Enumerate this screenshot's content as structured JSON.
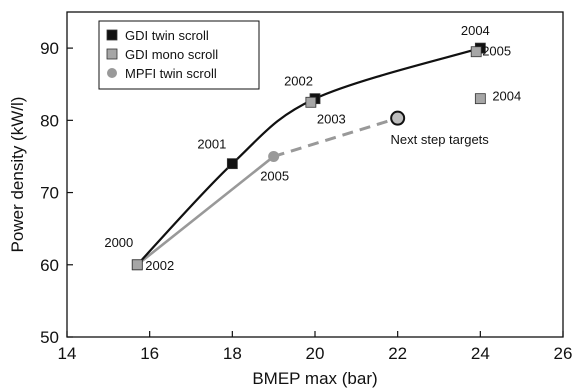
{
  "chart_data": {
    "type": "line",
    "title": "",
    "xlabel": "BMEP max (bar)",
    "ylabel": "Power density (kW/l)",
    "xlim": [
      14,
      26
    ],
    "ylim": [
      50,
      95
    ],
    "xticks": [
      "14",
      "16",
      "18",
      "20",
      "22",
      "24",
      "26"
    ],
    "yticks": [
      "50",
      "60",
      "70",
      "80",
      "90"
    ],
    "grid": false,
    "legend_position": "top-left",
    "series": [
      {
        "name": "GDI twin scroll",
        "marker": "square",
        "color": "#111111",
        "connected": true,
        "points": [
          {
            "x": 15.7,
            "y": 60,
            "label": "2000"
          },
          {
            "x": 18.0,
            "y": 74,
            "label": "2001"
          },
          {
            "x": 20.0,
            "y": 83,
            "label": "2002"
          },
          {
            "x": 24.0,
            "y": 90,
            "label": "2004"
          }
        ]
      },
      {
        "name": "GDI mono scroll",
        "marker": "square",
        "color": "#a6a6a6",
        "connected": false,
        "points": [
          {
            "x": 15.7,
            "y": 60,
            "label": "2002"
          },
          {
            "x": 19.9,
            "y": 82.5,
            "label": "2003"
          },
          {
            "x": 23.9,
            "y": 89.5,
            "label": "2005"
          },
          {
            "x": 24.0,
            "y": 83,
            "label": "2004"
          }
        ]
      },
      {
        "name": "MPFI twin scroll",
        "marker": "circle",
        "color": "#999999",
        "connected": true,
        "points": [
          {
            "x": 15.7,
            "y": 60,
            "label": ""
          },
          {
            "x": 19.0,
            "y": 75,
            "label": "2005"
          }
        ]
      }
    ],
    "targets": {
      "label": "Next step targets",
      "projection": [
        {
          "x": 19.0,
          "y": 75
        },
        {
          "x": 22.0,
          "y": 80.3
        }
      ],
      "point": {
        "x": 22.0,
        "y": 80.3
      }
    }
  }
}
